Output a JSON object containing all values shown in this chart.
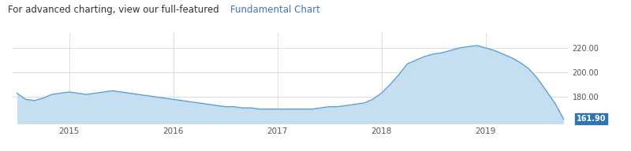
{
  "title_plain": "For advanced charting, view our full-featured ",
  "title_link": "Fundamental Chart",
  "title_fontsize": 8.5,
  "background_color": "#ffffff",
  "fill_color": "#c5dff0",
  "line_color": "#5a9fd4",
  "label_color": "#4472c4",
  "grid_color": "#dddddd",
  "yticks": [
    180.0,
    200.0,
    220.0
  ],
  "xtick_labels": [
    "2015",
    "2016",
    "2017",
    "2018",
    "2019"
  ],
  "last_value": 161.9,
  "last_value_bg": "#2e75b6",
  "last_value_text": "#ffffff",
  "ylim_min": 158,
  "ylim_max": 232,
  "data_x": [
    0,
    1,
    2,
    3,
    4,
    5,
    6,
    7,
    8,
    9,
    10,
    11,
    12,
    13,
    14,
    15,
    16,
    17,
    18,
    19,
    20,
    21,
    22,
    23,
    24,
    25,
    26,
    27,
    28,
    29,
    30,
    31,
    32,
    33,
    34,
    35,
    36,
    37,
    38,
    39,
    40,
    41,
    42,
    43,
    44,
    45,
    46,
    47,
    48,
    49,
    50,
    51,
    52,
    53,
    54,
    55,
    56,
    57,
    58,
    59,
    60,
    61,
    62,
    63
  ],
  "data_y": [
    183,
    178,
    177,
    179,
    182,
    183,
    184,
    183,
    182,
    183,
    184,
    185,
    184,
    183,
    182,
    181,
    180,
    179,
    178,
    177,
    176,
    175,
    174,
    173,
    172,
    172,
    171,
    171,
    170,
    170,
    170,
    170,
    170,
    170,
    170,
    171,
    172,
    172,
    173,
    174,
    175,
    178,
    183,
    190,
    198,
    207,
    210,
    213,
    215,
    216,
    218,
    220,
    221,
    222,
    220,
    218,
    215,
    212,
    208,
    203,
    195,
    185,
    175,
    161.9
  ],
  "x_tick_positions": [
    6,
    18,
    30,
    42,
    54
  ],
  "xlim_min": -0.5,
  "xlim_max": 63.5
}
